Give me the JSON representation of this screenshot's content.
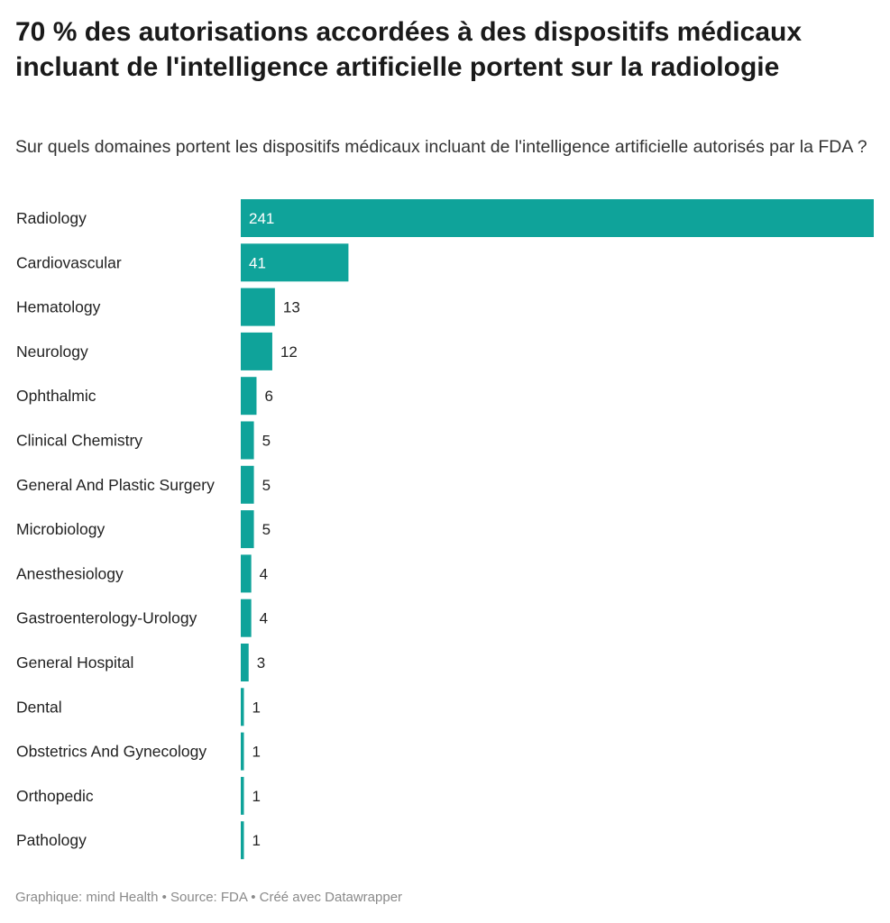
{
  "header": {
    "title": "70 % des autorisations accordées à des dispositifs médicaux incluant de l'intelligence artificielle portent sur la radiologie",
    "subtitle": "Sur quels domaines portent les dispositifs médicaux incluant de l'intelligence artificielle autorisés par la FDA ?"
  },
  "footer": {
    "text": "Graphique: mind Health • Source: FDA • Créé avec Datawrapper"
  },
  "chart_data": {
    "type": "bar",
    "orientation": "horizontal",
    "categories": [
      "Radiology",
      "Cardiovascular",
      "Hematology",
      "Neurology",
      "Ophthalmic",
      "Clinical Chemistry",
      "General And Plastic Surgery",
      "Microbiology",
      "Anesthesiology",
      "Gastroenterology-Urology",
      "General Hospital",
      "Dental",
      "Obstetrics And Gynecology",
      "Orthopedic",
      "Pathology"
    ],
    "values": [
      241,
      41,
      13,
      12,
      6,
      5,
      5,
      5,
      4,
      4,
      3,
      1,
      1,
      1,
      1
    ],
    "bar_color": "#0fa39a",
    "title": "70 % des autorisations accordées à des dispositifs médicaux incluant de l'intelligence artificielle portent sur la radiologie",
    "subtitle": "Sur quels domaines portent les dispositifs médicaux incluant de l'intelligence artificielle autorisés par la FDA ?",
    "xlim": [
      0,
      241
    ],
    "grid": false,
    "legend": "none",
    "data_labels": true
  }
}
